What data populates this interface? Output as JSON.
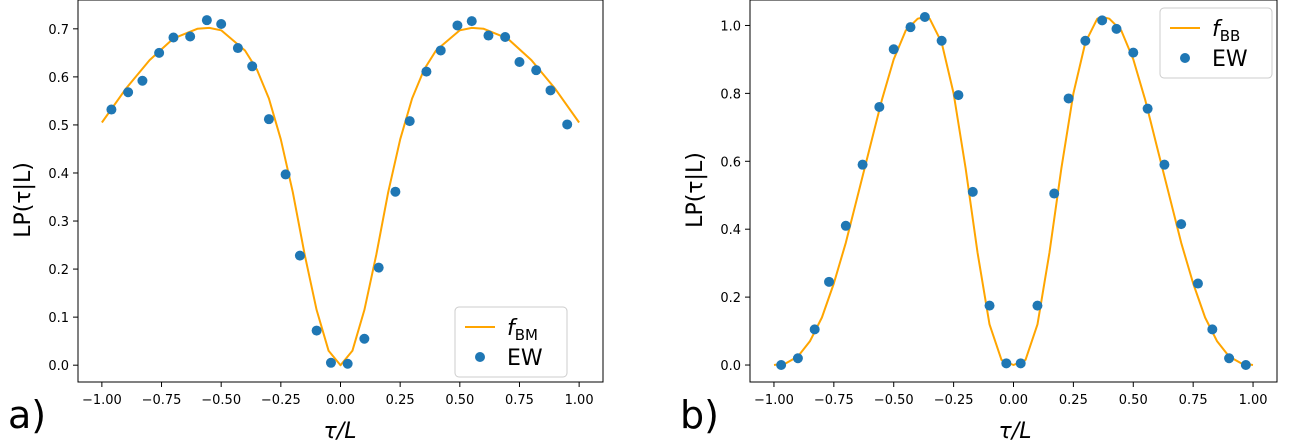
{
  "panels": [
    {
      "label": "a)"
    },
    {
      "label": "b)"
    }
  ],
  "chart_data": [
    {
      "type": "line",
      "xlabel": "τ/L",
      "ylabel": "LP(τ|L)",
      "xlim": [
        -1.1,
        1.1
      ],
      "ylim": [
        -0.035,
        0.76
      ],
      "xticks": [
        -1.0,
        -0.75,
        -0.5,
        -0.25,
        0.0,
        0.25,
        0.5,
        0.75,
        1.0
      ],
      "xtick_labels": [
        "−1.00",
        "−0.75",
        "−0.50",
        "−0.25",
        "0.00",
        "0.25",
        "0.50",
        "0.75",
        "1.00"
      ],
      "yticks": [
        0.0,
        0.1,
        0.2,
        0.3,
        0.4,
        0.5,
        0.6,
        0.7
      ],
      "ytick_labels": [
        "0.0",
        "0.1",
        "0.2",
        "0.3",
        "0.4",
        "0.5",
        "0.6",
        "0.7"
      ],
      "grid": false,
      "legend": {
        "position": "bottom-right",
        "entries": [
          {
            "label_main": "f",
            "label_sub": "BM",
            "kind": "line",
            "color": "#FFA500"
          },
          {
            "label_main": "EW",
            "label_sub": "",
            "kind": "marker",
            "color": "#1F77B4"
          }
        ]
      },
      "series": [
        {
          "kind": "line",
          "color": "#FFA500",
          "x": [
            -1.0,
            -0.9,
            -0.8,
            -0.7,
            -0.6,
            -0.55,
            -0.5,
            -0.4,
            -0.35,
            -0.3,
            -0.25,
            -0.2,
            -0.15,
            -0.1,
            -0.05,
            0.0,
            0.05,
            0.1,
            0.15,
            0.2,
            0.25,
            0.3,
            0.35,
            0.4,
            0.5,
            0.55,
            0.6,
            0.7,
            0.8,
            0.9,
            1.0
          ],
          "y": [
            0.505,
            0.575,
            0.635,
            0.68,
            0.7,
            0.702,
            0.697,
            0.655,
            0.615,
            0.555,
            0.47,
            0.36,
            0.23,
            0.115,
            0.03,
            0.0,
            0.03,
            0.115,
            0.23,
            0.36,
            0.47,
            0.555,
            0.615,
            0.655,
            0.697,
            0.702,
            0.7,
            0.68,
            0.635,
            0.575,
            0.505
          ]
        },
        {
          "kind": "scatter",
          "color": "#1F77B4",
          "x": [
            -0.96,
            -0.89,
            -0.83,
            -0.76,
            -0.7,
            -0.63,
            -0.56,
            -0.5,
            -0.43,
            -0.37,
            -0.3,
            -0.23,
            -0.17,
            -0.1,
            -0.04,
            0.03,
            0.1,
            0.16,
            0.23,
            0.29,
            0.36,
            0.42,
            0.49,
            0.55,
            0.62,
            0.69,
            0.75,
            0.82,
            0.88,
            0.95
          ],
          "y": [
            0.532,
            0.568,
            0.592,
            0.65,
            0.682,
            0.684,
            0.718,
            0.71,
            0.66,
            0.622,
            0.512,
            0.397,
            0.228,
            0.072,
            0.005,
            0.003,
            0.055,
            0.203,
            0.361,
            0.508,
            0.611,
            0.655,
            0.707,
            0.716,
            0.686,
            0.683,
            0.631,
            0.614,
            0.572,
            0.501
          ]
        }
      ]
    },
    {
      "type": "line",
      "xlabel": "τ/L",
      "ylabel": "LP(τ|L)",
      "xlim": [
        -1.1,
        1.1
      ],
      "ylim": [
        -0.05,
        1.075
      ],
      "xticks": [
        -1.0,
        -0.75,
        -0.5,
        -0.25,
        0.0,
        0.25,
        0.5,
        0.75,
        1.0
      ],
      "xtick_labels": [
        "−1.00",
        "−0.75",
        "−0.50",
        "−0.25",
        "0.00",
        "0.25",
        "0.50",
        "0.75",
        "1.00"
      ],
      "yticks": [
        0.0,
        0.2,
        0.4,
        0.6,
        0.8,
        1.0
      ],
      "ytick_labels": [
        "0.0",
        "0.2",
        "0.4",
        "0.6",
        "0.8",
        "1.0"
      ],
      "grid": false,
      "legend": {
        "position": "top-right",
        "entries": [
          {
            "label_main": "f",
            "label_sub": "BB",
            "kind": "line",
            "color": "#FFA500"
          },
          {
            "label_main": "EW",
            "label_sub": "",
            "kind": "marker",
            "color": "#1F77B4"
          }
        ]
      },
      "series": [
        {
          "kind": "line",
          "color": "#FFA500",
          "x": [
            -1.0,
            -0.95,
            -0.9,
            -0.85,
            -0.8,
            -0.75,
            -0.7,
            -0.65,
            -0.6,
            -0.55,
            -0.5,
            -0.45,
            -0.4,
            -0.37,
            -0.35,
            -0.3,
            -0.25,
            -0.2,
            -0.15,
            -0.1,
            -0.05,
            0.0,
            0.05,
            0.1,
            0.15,
            0.2,
            0.25,
            0.3,
            0.35,
            0.37,
            0.4,
            0.45,
            0.5,
            0.55,
            0.6,
            0.65,
            0.7,
            0.75,
            0.8,
            0.85,
            0.9,
            0.95,
            1.0
          ],
          "y": [
            0.0,
            0.005,
            0.025,
            0.07,
            0.14,
            0.24,
            0.36,
            0.5,
            0.64,
            0.78,
            0.9,
            0.985,
            1.02,
            1.025,
            1.02,
            0.95,
            0.8,
            0.58,
            0.33,
            0.12,
            0.015,
            0.0,
            0.015,
            0.12,
            0.33,
            0.58,
            0.8,
            0.95,
            1.02,
            1.025,
            1.02,
            0.985,
            0.9,
            0.78,
            0.64,
            0.5,
            0.36,
            0.24,
            0.14,
            0.07,
            0.025,
            0.005,
            0.0
          ]
        },
        {
          "kind": "scatter",
          "color": "#1F77B4",
          "x": [
            -0.97,
            -0.9,
            -0.83,
            -0.77,
            -0.7,
            -0.63,
            -0.56,
            -0.5,
            -0.43,
            -0.37,
            -0.3,
            -0.23,
            -0.17,
            -0.1,
            -0.03,
            0.03,
            0.1,
            0.17,
            0.23,
            0.3,
            0.37,
            0.43,
            0.5,
            0.56,
            0.63,
            0.7,
            0.77,
            0.83,
            0.9,
            0.97
          ],
          "y": [
            0.0,
            0.02,
            0.105,
            0.245,
            0.41,
            0.59,
            0.76,
            0.93,
            0.995,
            1.025,
            0.955,
            0.795,
            0.51,
            0.175,
            0.005,
            0.005,
            0.175,
            0.505,
            0.785,
            0.955,
            1.015,
            0.99,
            0.92,
            0.755,
            0.59,
            0.415,
            0.24,
            0.105,
            0.02,
            0.0
          ]
        }
      ]
    }
  ]
}
